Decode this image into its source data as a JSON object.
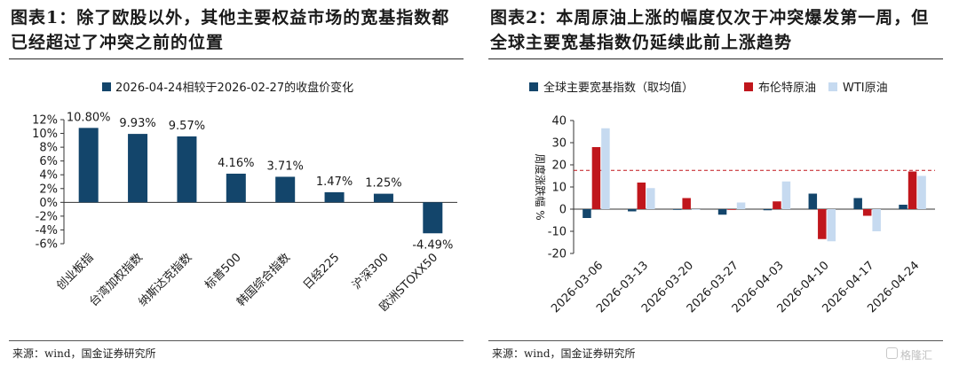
{
  "left": {
    "title": "图表1：除了欧股以外，其他主要权益市场的宽基指数都已经超过了冲突之前的位置",
    "source": "来源：wind，国金证券研究所"
  },
  "right": {
    "title": "图表2：本周原油上涨的幅度仅次于冲突爆发第一周，但全球主要宽基指数仍延续此前上涨趋势",
    "source": "来源：wind，国金证券研究所"
  },
  "watermark": "格隆汇",
  "chart_data": [
    {
      "type": "bar",
      "legend": [
        "2026-04-24相较于2026-02-27的收盘价变化"
      ],
      "legend_position": "top",
      "categories": [
        "创业板指",
        "台湾加权指数",
        "纳斯达克指数",
        "标普500",
        "韩国综合指数",
        "日经225",
        "沪深300",
        "欧洲STOXX50"
      ],
      "values": [
        10.8,
        9.93,
        9.57,
        4.16,
        3.71,
        1.47,
        1.25,
        -4.49
      ],
      "data_labels": [
        "10.80%",
        "9.93%",
        "9.57%",
        "4.16%",
        "3.71%",
        "1.47%",
        "1.25%",
        "-4.49%"
      ],
      "yticks": [
        "12%",
        "10%",
        "8%",
        "6%",
        "4%",
        "2%",
        "0%",
        "-2%",
        "-4%",
        "-6%"
      ],
      "ylim": [
        -6,
        12
      ],
      "grid": false,
      "colors": {
        "bar": "#13456b"
      }
    },
    {
      "type": "bar",
      "legend_position": "top",
      "ylabel": "周度涨跌幅 %",
      "categories": [
        "2026-03-06",
        "2026-03-13",
        "2026-03-20",
        "2026-03-27",
        "2026-04-03",
        "2026-04-10",
        "2026-04-17",
        "2026-04-24"
      ],
      "series": [
        {
          "name": "全球主要宽基指数（取均值）",
          "color": "#13456b",
          "values": [
            -4,
            -1,
            0,
            -2.5,
            -0.5,
            7,
            5,
            2
          ]
        },
        {
          "name": "布伦特原油",
          "color": "#c0161c",
          "values": [
            28,
            12,
            5,
            0,
            3.5,
            -13.5,
            -3,
            17
          ]
        },
        {
          "name": "WTI原油",
          "color": "#c6daf0",
          "values": [
            36.5,
            9.5,
            0,
            3,
            12.5,
            -14.5,
            -10,
            15
          ]
        }
      ],
      "reference_line": {
        "value": 17.5,
        "style": "dashed",
        "color": "#c0161c"
      },
      "yticks": [
        "40",
        "30",
        "20",
        "10",
        "0",
        "-10",
        "-20"
      ],
      "ylim": [
        -20,
        40
      ],
      "grid": false
    }
  ]
}
